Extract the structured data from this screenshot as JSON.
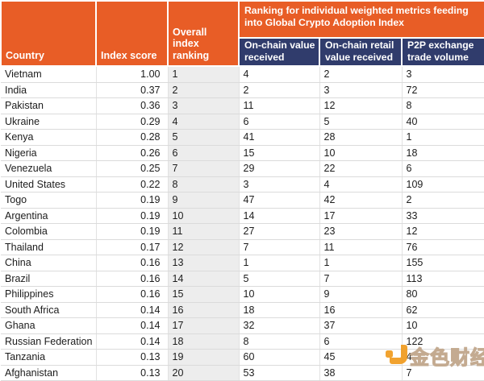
{
  "colors": {
    "header_orange": "#E85D26",
    "subheader_navy": "#303C6C",
    "rank_column_bg": "#EDEDED",
    "grid_line": "#DBDBDB",
    "body_text": "#1C1C1C",
    "watermark_gold": "#F09B1E"
  },
  "chart_data": {
    "type": "table",
    "banner": "Ranking for individual weighted metrics feeding into Global Crypto Adoption Index",
    "columns": [
      "Country",
      "Index score",
      "Overall index ranking",
      "On-chain value received",
      "On-chain retail value received",
      "P2P exchange trade volume"
    ],
    "rows": [
      [
        "Vietnam",
        "1.00",
        "1",
        "4",
        "2",
        "3"
      ],
      [
        "India",
        "0.37",
        "2",
        "2",
        "3",
        "72"
      ],
      [
        "Pakistan",
        "0.36",
        "3",
        "11",
        "12",
        "8"
      ],
      [
        "Ukraine",
        "0.29",
        "4",
        "6",
        "5",
        "40"
      ],
      [
        "Kenya",
        "0.28",
        "5",
        "41",
        "28",
        "1"
      ],
      [
        "Nigeria",
        "0.26",
        "6",
        "15",
        "10",
        "18"
      ],
      [
        "Venezuela",
        "0.25",
        "7",
        "29",
        "22",
        "6"
      ],
      [
        "United States",
        "0.22",
        "8",
        "3",
        "4",
        "109"
      ],
      [
        "Togo",
        "0.19",
        "9",
        "47",
        "42",
        "2"
      ],
      [
        "Argentina",
        "0.19",
        "10",
        "14",
        "17",
        "33"
      ],
      [
        "Colombia",
        "0.19",
        "11",
        "27",
        "23",
        "12"
      ],
      [
        "Thailand",
        "0.17",
        "12",
        "7",
        "11",
        "76"
      ],
      [
        "China",
        "0.16",
        "13",
        "1",
        "1",
        "155"
      ],
      [
        "Brazil",
        "0.16",
        "14",
        "5",
        "7",
        "113"
      ],
      [
        "Philippines",
        "0.16",
        "15",
        "10",
        "9",
        "80"
      ],
      [
        "South Africa",
        "0.14",
        "16",
        "18",
        "16",
        "62"
      ],
      [
        "Ghana",
        "0.14",
        "17",
        "32",
        "37",
        "10"
      ],
      [
        "Russian Federation",
        "0.14",
        "18",
        "8",
        "6",
        "122"
      ],
      [
        "Tanzania",
        "0.13",
        "19",
        "60",
        "45",
        "4"
      ],
      [
        "Afghanistan",
        "0.13",
        "20",
        "53",
        "38",
        "7"
      ]
    ]
  },
  "watermark": {
    "text": "金色财经"
  }
}
